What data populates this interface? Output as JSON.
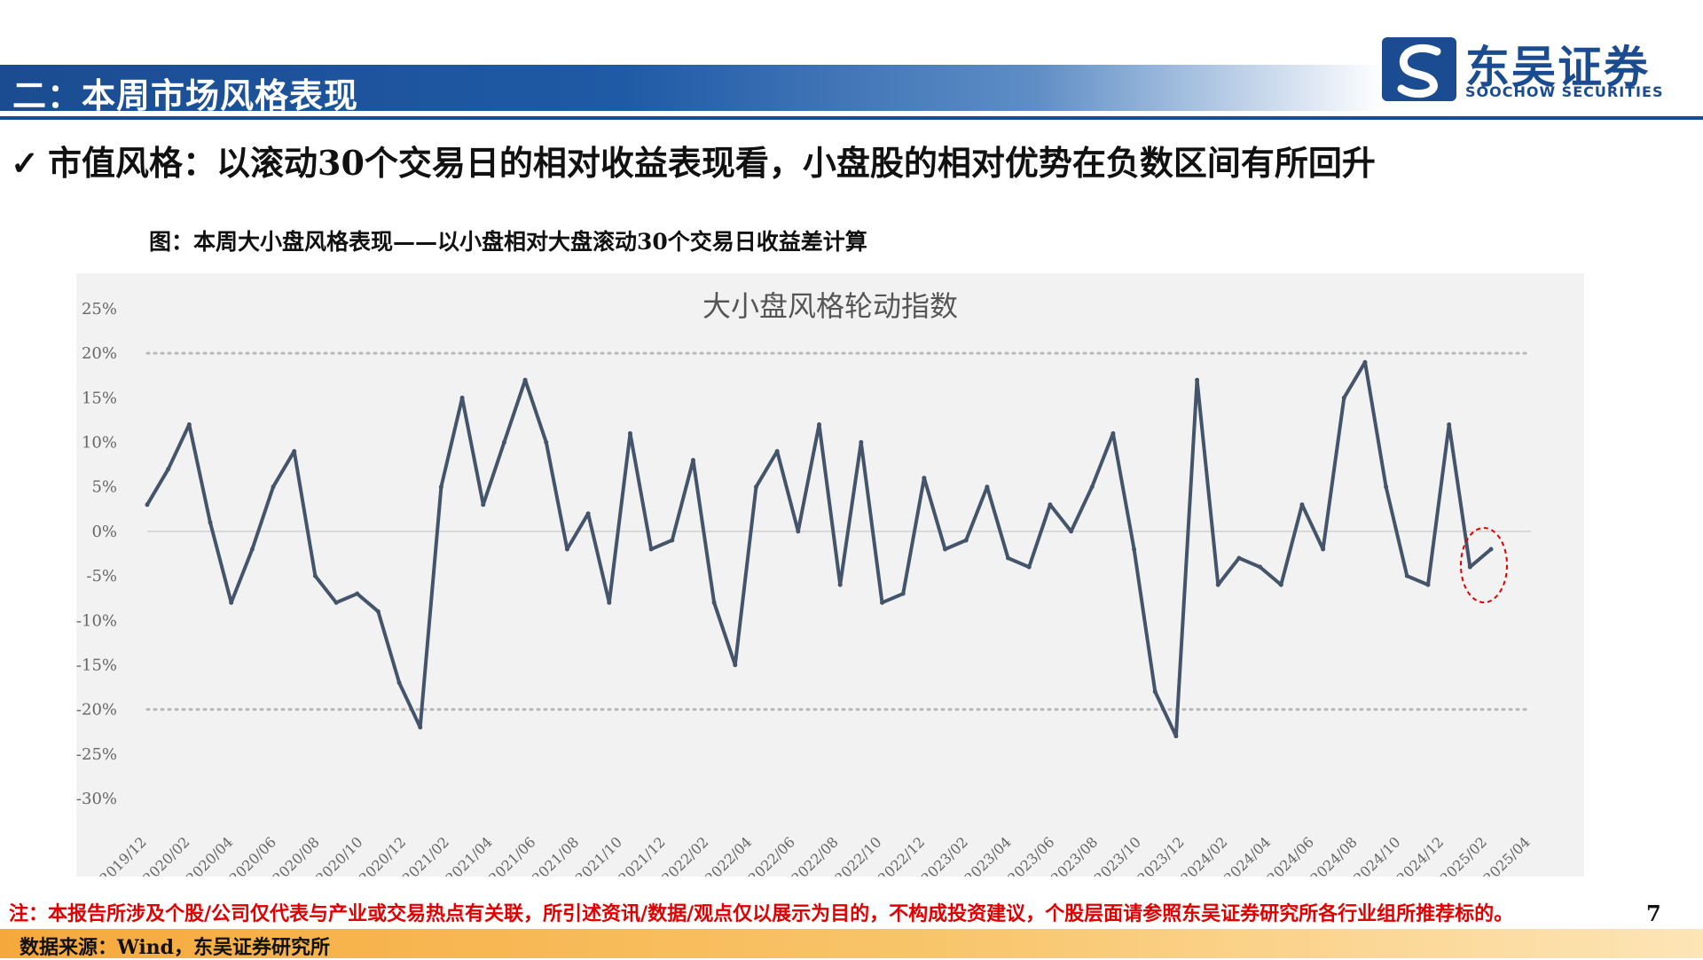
{
  "header": {
    "section_title": "二：本周市场风格表现",
    "brand_cn": "东吴证券",
    "brand_en": "SOOCHOW SECURITIES",
    "brand_color": "#1b4c91"
  },
  "headline": {
    "check_icon": "✓",
    "text": "市值风格：以滚动30个交易日的相对收益表现看，小盘股的相对优势在负数区间有所回升"
  },
  "figure_caption": "图：本周大小盘风格表现——以小盘相对大盘滚动30个交易日收益差计算",
  "chart_data": {
    "type": "line",
    "title": "大小盘风格轮动指数",
    "xlabel": "",
    "ylabel": "",
    "x_tick_labels": [
      "2019/12",
      "2020/02",
      "2020/04",
      "2020/06",
      "2020/08",
      "2020/10",
      "2020/12",
      "2021/02",
      "2021/04",
      "2021/06",
      "2021/08",
      "2021/10",
      "2021/12",
      "2022/02",
      "2022/04",
      "2022/06",
      "2022/08",
      "2022/10",
      "2022/12",
      "2023/02",
      "2023/04",
      "2023/06",
      "2023/08",
      "2023/10",
      "2023/12",
      "2024/02",
      "2024/04",
      "2024/06",
      "2024/08",
      "2024/10",
      "2024/12",
      "2025/02",
      "2025/04"
    ],
    "y_tick_labels": [
      "25%",
      "20%",
      "15%",
      "10%",
      "5%",
      "0%",
      "-5%",
      "-10%",
      "-15%",
      "-20%",
      "-25%",
      "-30%"
    ],
    "ylim": [
      -30,
      25
    ],
    "reference_lines": [
      20,
      -20
    ],
    "zero_line": 0,
    "line_color": "#44546a",
    "highlight_color": "#e00000",
    "grid": false,
    "series": [
      {
        "x": [
          "2019/12",
          "2020/01",
          "2020/02",
          "2020/03",
          "2020/04",
          "2020/05",
          "2020/06",
          "2020/07",
          "2020/08",
          "2020/09",
          "2020/10",
          "2020/11",
          "2020/12",
          "2021/01",
          "2021/02",
          "2021/03",
          "2021/04",
          "2021/05",
          "2021/06",
          "2021/07",
          "2021/08",
          "2021/09",
          "2021/10",
          "2021/11",
          "2021/12",
          "2022/01",
          "2022/02",
          "2022/03",
          "2022/04",
          "2022/05",
          "2022/06",
          "2022/07",
          "2022/08",
          "2022/09",
          "2022/10",
          "2022/11",
          "2022/12",
          "2023/01",
          "2023/02",
          "2023/03",
          "2023/04",
          "2023/05",
          "2023/06",
          "2023/07",
          "2023/08",
          "2023/09",
          "2023/10",
          "2023/11",
          "2023/12",
          "2024/01",
          "2024/02",
          "2024/03",
          "2024/04",
          "2024/05",
          "2024/06",
          "2024/07",
          "2024/08",
          "2024/09",
          "2024/10",
          "2024/11",
          "2024/12",
          "2025/01",
          "2025/02",
          "2025/03",
          "2025/04"
        ],
        "values": [
          3,
          7,
          12,
          1,
          -8,
          -2,
          5,
          9,
          -5,
          -8,
          -7,
          -9,
          -17,
          -22,
          5,
          15,
          3,
          10,
          17,
          10,
          -2,
          2,
          -8,
          11,
          -2,
          -1,
          8,
          -8,
          -15,
          5,
          9,
          0,
          12,
          -6,
          10,
          -8,
          -7,
          6,
          -2,
          -1,
          5,
          -3,
          -4,
          3,
          0,
          5,
          11,
          -2,
          -18,
          -23,
          17,
          -6,
          -3,
          -4,
          -6,
          3,
          -2,
          15,
          19,
          5,
          -5,
          -6,
          12,
          -4,
          -2
        ]
      }
    ]
  },
  "footnote": "注：本报告所涉及个股/公司仅代表与产业或交易热点有关联，所引述资讯/数据/观点仅以展示为目的，不构成投资建议，个股层面请参照东吴证券研究所各行业组所推荐标的。",
  "page_number": "7",
  "source": "数据来源：Wind，东吴证券研究所"
}
